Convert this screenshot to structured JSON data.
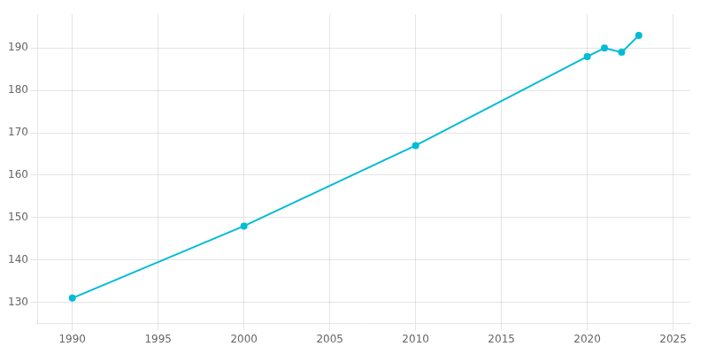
{
  "chart_data": {
    "type": "line",
    "x": [
      1990,
      2000,
      2010,
      2020,
      2021,
      2022,
      2023
    ],
    "values": [
      131,
      148,
      167,
      188,
      190,
      189,
      193
    ],
    "color": "#00BCD4",
    "marker": "circle",
    "xlim": [
      1988,
      2026
    ],
    "ylim": [
      125,
      198
    ],
    "xticks": [
      1990,
      1995,
      2000,
      2005,
      2010,
      2015,
      2020,
      2025
    ],
    "yticks": [
      130,
      140,
      150,
      160,
      170,
      180,
      190
    ],
    "grid": true
  }
}
